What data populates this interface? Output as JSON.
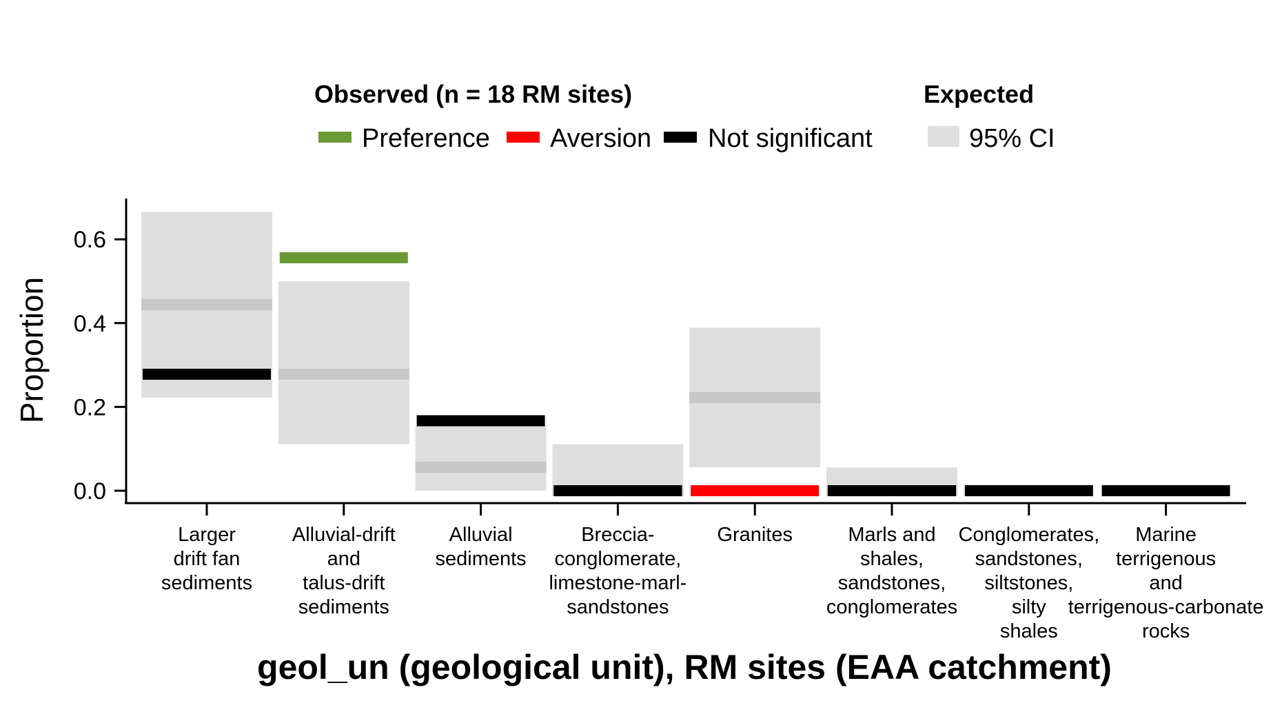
{
  "chart_data": {
    "type": "bar",
    "xlabel": "geol_un (geological unit), RM sites (EAA catchment)",
    "ylabel": "Proportion",
    "ylim": [
      0,
      0.7
    ],
    "yticks": [
      "0.0",
      "0.2",
      "0.4",
      "0.6"
    ],
    "ytick_values": [
      0,
      0.2,
      0.4,
      0.6
    ],
    "legend": {
      "observed_title": "Observed (n = 18 RM sites)",
      "observed_items": [
        {
          "label": "Preference",
          "color": "#6a9a34"
        },
        {
          "label": "Aversion",
          "color": "#ff0000"
        },
        {
          "label": "Not significant",
          "color": "#000000"
        }
      ],
      "expected_title": "Expected",
      "expected_items": [
        {
          "label": "95% CI",
          "color": "#dedede"
        }
      ],
      "placement": "top"
    },
    "categories": [
      {
        "label_lines": [
          "Larger",
          "drift fan",
          "sediments"
        ],
        "ci": [
          0.222,
          0.665
        ],
        "expected": 0.444,
        "observed": 0.278,
        "status": "Not significant"
      },
      {
        "label_lines": [
          "Alluvial-drift",
          "and",
          "talus-drift",
          "sediments"
        ],
        "ci": [
          0.111,
          0.5
        ],
        "expected": 0.278,
        "observed": 0.556,
        "status": "Preference"
      },
      {
        "label_lines": [
          "Alluvial",
          "sediments"
        ],
        "ci": [
          0.0,
          0.155
        ],
        "expected": 0.056,
        "observed": 0.167,
        "status": "Not significant"
      },
      {
        "label_lines": [
          "Breccia-",
          "conglomerate,",
          "limestone-marl-",
          "sandstones"
        ],
        "ci": [
          0.0,
          0.111
        ],
        "expected": 0.0,
        "observed": 0.0,
        "status": "Not significant"
      },
      {
        "label_lines": [
          "Granites"
        ],
        "ci": [
          0.056,
          0.389
        ],
        "expected": 0.222,
        "observed": 0.0,
        "status": "Aversion"
      },
      {
        "label_lines": [
          "Marls and",
          "shales,",
          "sandstones,",
          "conglomerates"
        ],
        "ci": [
          0.0,
          0.056
        ],
        "expected": 0.0,
        "observed": 0.0,
        "status": "Not significant"
      },
      {
        "label_lines": [
          "Conglomerates,",
          "sandstones,",
          "siltstones,",
          "silty",
          "shales"
        ],
        "ci": [
          0.0,
          0.0
        ],
        "expected": 0.0,
        "observed": 0.0,
        "status": "Not significant"
      },
      {
        "label_lines": [
          "Marine",
          "terrigenous",
          "and",
          "terrigenous-carbonate",
          "rocks"
        ],
        "ci": [
          0.0,
          0.0
        ],
        "expected": 0.0,
        "observed": 0.0,
        "status": "Not significant"
      }
    ],
    "colors": {
      "ci_fill": "#dedede",
      "expected_line": "#c8c8c8",
      "preference": "#6a9a34",
      "aversion": "#ff0000",
      "not_significant": "#000000"
    }
  }
}
